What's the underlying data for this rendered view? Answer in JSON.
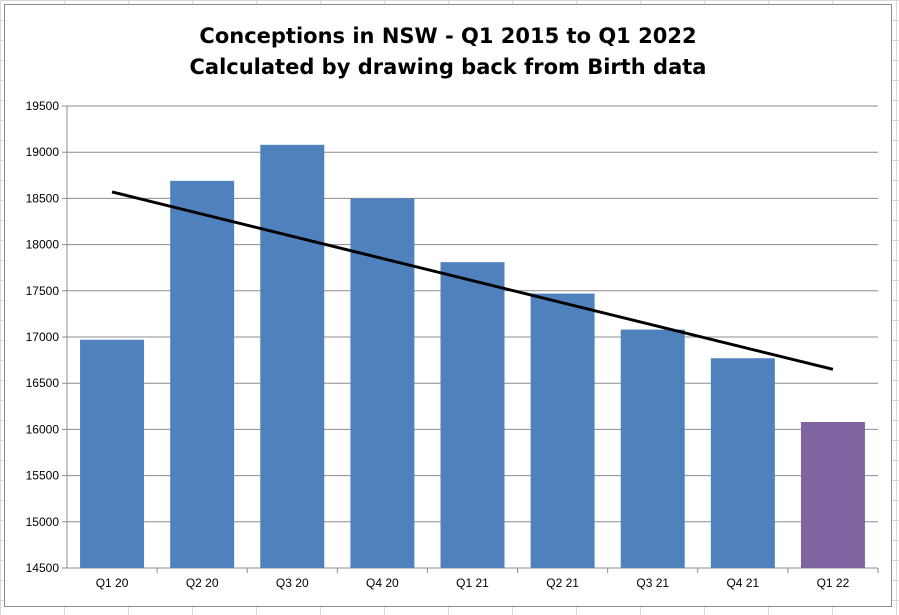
{
  "chart_data": {
    "type": "bar",
    "title": "Conceptions in NSW - Q1 2015 to Q1 2022",
    "subtitle": "Calculated by drawing back from Birth data",
    "categories": [
      "Q1 20",
      "Q2 20",
      "Q3 20",
      "Q4 20",
      "Q1 21",
      "Q2 21",
      "Q3 21",
      "Q4 21",
      "Q1 22"
    ],
    "values": [
      16970,
      18690,
      19080,
      18500,
      17810,
      17470,
      17080,
      16770,
      16080
    ],
    "bar_colors": [
      "#4f81bd",
      "#4f81bd",
      "#4f81bd",
      "#4f81bd",
      "#4f81bd",
      "#4f81bd",
      "#4f81bd",
      "#4f81bd",
      "#8064a2"
    ],
    "trendline": {
      "type": "linear",
      "start": 18570,
      "end": 16650,
      "color": "#000000"
    },
    "ylim": [
      14500,
      19500
    ],
    "yticks": [
      14500,
      15000,
      15500,
      16000,
      16500,
      17000,
      17500,
      18000,
      18500,
      19000,
      19500
    ],
    "grid": true,
    "xlabel": "",
    "ylabel": ""
  }
}
